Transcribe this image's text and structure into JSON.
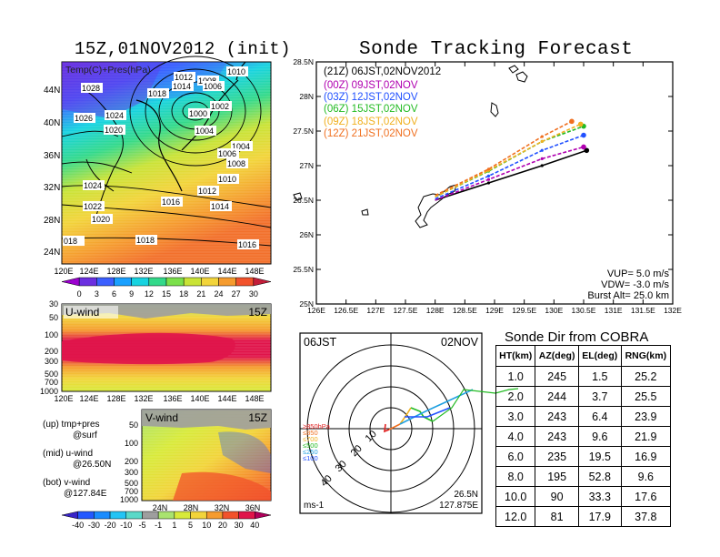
{
  "left_panel": {
    "title": "15Z,01NOV2012 (init)",
    "map_label": "Temp(C)+Pres(hPa)",
    "lat_labels": [
      "44N",
      "40N",
      "36N",
      "32N",
      "28N",
      "24N"
    ],
    "lon_labels": [
      "120E",
      "124E",
      "128E",
      "132E",
      "136E",
      "140E",
      "144E",
      "148E"
    ],
    "pressure_labels": [
      "1010",
      "1028",
      "1018",
      "1012",
      "1014",
      "1008",
      "1006",
      "1002",
      "1000",
      "1026",
      "1024",
      "1020",
      "1004",
      "1004",
      "1006",
      "1008",
      "1010",
      "1012",
      "1024",
      "1022",
      "1016",
      "1014",
      "1020",
      "018",
      "1018",
      "1016"
    ],
    "temp_colorbar": {
      "labels": [
        "0",
        "3",
        "6",
        "9",
        "12",
        "15",
        "18",
        "21",
        "24",
        "27",
        "30"
      ],
      "colors": [
        "#9b00cf",
        "#6b2fe0",
        "#3b5fff",
        "#19a0ff",
        "#17d3e0",
        "#33d98a",
        "#7be04a",
        "#c9e336",
        "#f2d43a",
        "#f59b2e",
        "#f2522b",
        "#c41e3a"
      ]
    },
    "uwind": {
      "label": "U-wind",
      "time": "15Z",
      "y_labels": [
        "30",
        "50",
        "100",
        "200",
        "300",
        "500",
        "700",
        "1000"
      ],
      "x_labels": [
        "120E",
        "124E",
        "128E",
        "132E",
        "136E",
        "140E",
        "144E",
        "148E"
      ]
    },
    "vwind": {
      "label": "V-wind",
      "time": "15Z",
      "y_labels": [
        "50",
        "100",
        "200",
        "300",
        "500",
        "700",
        "1000"
      ],
      "x_labels": [
        "24N",
        "28N",
        "32N",
        "36N"
      ]
    },
    "legend_notes": [
      "(up) tmp+pres",
      "@surf",
      "(mid) u-wind",
      "@26.50N",
      "(bot) v-wind",
      "@127.84E"
    ],
    "wind_colorbar": {
      "labels": [
        "-40",
        "-30",
        "-20",
        "-10",
        "-5",
        "-1",
        "1",
        "5",
        "10",
        "20",
        "30",
        "40"
      ],
      "colors": [
        "#3a25c8",
        "#2358ff",
        "#1a8cff",
        "#23c4f5",
        "#5ad9c8",
        "#9e9e9e",
        "#a9e36f",
        "#d8ea3a",
        "#f2d43a",
        "#f59b2e",
        "#f2522b",
        "#e0144a",
        "#b0005a"
      ]
    }
  },
  "track_panel": {
    "title": "Sonde Tracking Forecast",
    "y_labels": [
      "28.5N",
      "28N",
      "27.5N",
      "27N",
      "26.5N",
      "26N",
      "25.5N",
      "25N"
    ],
    "x_labels": [
      "126E",
      "126.5E",
      "127E",
      "127.5E",
      "128E",
      "128.5E",
      "129E",
      "129.5E",
      "130E",
      "130.5E",
      "131E",
      "131.5E",
      "132E"
    ],
    "legend": [
      {
        "text": "(21Z)  06JST,02NOV2012",
        "color": "#000000"
      },
      {
        "text": "(00Z)  09JST,02NOV",
        "color": "#b000b0"
      },
      {
        "text": "(03Z)  12JST,02NOV",
        "color": "#2050ff"
      },
      {
        "text": "(06Z)  15JST,02NOV",
        "color": "#22bb22"
      },
      {
        "text": "(09Z)  18JST,02NOV",
        "color": "#f0b020"
      },
      {
        "text": "(12Z)  21JST,02NOV",
        "color": "#f07020"
      }
    ],
    "params": [
      "VUP=  5.0  m/s",
      "VDW= -3.0  m/s",
      "Burst Alt=  25.0  km"
    ]
  },
  "polar_panel": {
    "left_label": "06JST",
    "right_label": "02NOV",
    "ring_labels": [
      "10",
      "20",
      "30",
      "40"
    ],
    "levels": [
      {
        "text": "≥850hPa",
        "color": "#e02020"
      },
      {
        "text": "≤850",
        "color": "#f07020"
      },
      {
        "text": "≤700",
        "color": "#f0b020"
      },
      {
        "text": "≤500",
        "color": "#22bb22"
      },
      {
        "text": "≤250",
        "color": "#20a0e0"
      },
      {
        "text": "≤100",
        "color": "#2050ff"
      }
    ],
    "unit": "ms-1",
    "pos_lat": "26.5N",
    "pos_lon": "127.875E"
  },
  "table": {
    "title": "Sonde Dir from COBRA",
    "headers": [
      "HT(km)",
      "AZ(deg)",
      "EL(deg)",
      "RNG(km)"
    ],
    "rows": [
      [
        "1.0",
        "245",
        "1.5",
        "25.2"
      ],
      [
        "2.0",
        "244",
        "3.7",
        "25.5"
      ],
      [
        "3.0",
        "243",
        "6.4",
        "23.9"
      ],
      [
        "4.0",
        "243",
        "9.6",
        "21.9"
      ],
      [
        "6.0",
        "235",
        "19.5",
        "16.9"
      ],
      [
        "8.0",
        "195",
        "52.8",
        "9.6"
      ],
      [
        "10.0",
        "90",
        "33.3",
        "17.6"
      ],
      [
        "12.0",
        "81",
        "17.9",
        "37.8"
      ]
    ]
  },
  "chart_data": {
    "type": "line",
    "title": "Sonde Tracking Forecast",
    "xlabel": "",
    "ylabel": "",
    "xlim": [
      126,
      132
    ],
    "ylim": [
      25,
      28.5
    ],
    "series": [
      {
        "name": "(21Z)  06JST,02NOV2012",
        "color": "#000000",
        "dash": false,
        "points": [
          [
            128.0,
            26.5
          ],
          [
            128.9,
            26.75
          ],
          [
            129.8,
            27.0
          ],
          [
            130.55,
            27.22
          ]
        ]
      },
      {
        "name": "(00Z)  09JST,02NOV",
        "color": "#b000b0",
        "dash": true,
        "points": [
          [
            128.0,
            26.5
          ],
          [
            128.9,
            26.8
          ],
          [
            129.8,
            27.1
          ],
          [
            130.5,
            27.27
          ]
        ]
      },
      {
        "name": "(03Z)  12JST,02NOV",
        "color": "#2050ff",
        "dash": true,
        "points": [
          [
            128.0,
            26.52
          ],
          [
            128.9,
            26.85
          ],
          [
            129.8,
            27.22
          ],
          [
            130.5,
            27.44
          ]
        ]
      },
      {
        "name": "(06Z)  15JST,02NOV",
        "color": "#22bb22",
        "dash": true,
        "points": [
          [
            128.0,
            26.55
          ],
          [
            128.9,
            26.92
          ],
          [
            129.8,
            27.35
          ],
          [
            130.5,
            27.57
          ]
        ]
      },
      {
        "name": "(09Z)  18JST,02NOV",
        "color": "#f0b020",
        "dash": true,
        "points": [
          [
            128.0,
            26.55
          ],
          [
            128.9,
            26.93
          ],
          [
            129.8,
            27.35
          ],
          [
            130.45,
            27.6
          ]
        ]
      },
      {
        "name": "(12Z)  21JST,02NOV",
        "color": "#f07020",
        "dash": true,
        "points": [
          [
            128.0,
            26.57
          ],
          [
            128.9,
            26.95
          ],
          [
            129.8,
            27.42
          ],
          [
            130.3,
            27.64
          ]
        ]
      }
    ],
    "grid": false,
    "legend": "top-left"
  }
}
